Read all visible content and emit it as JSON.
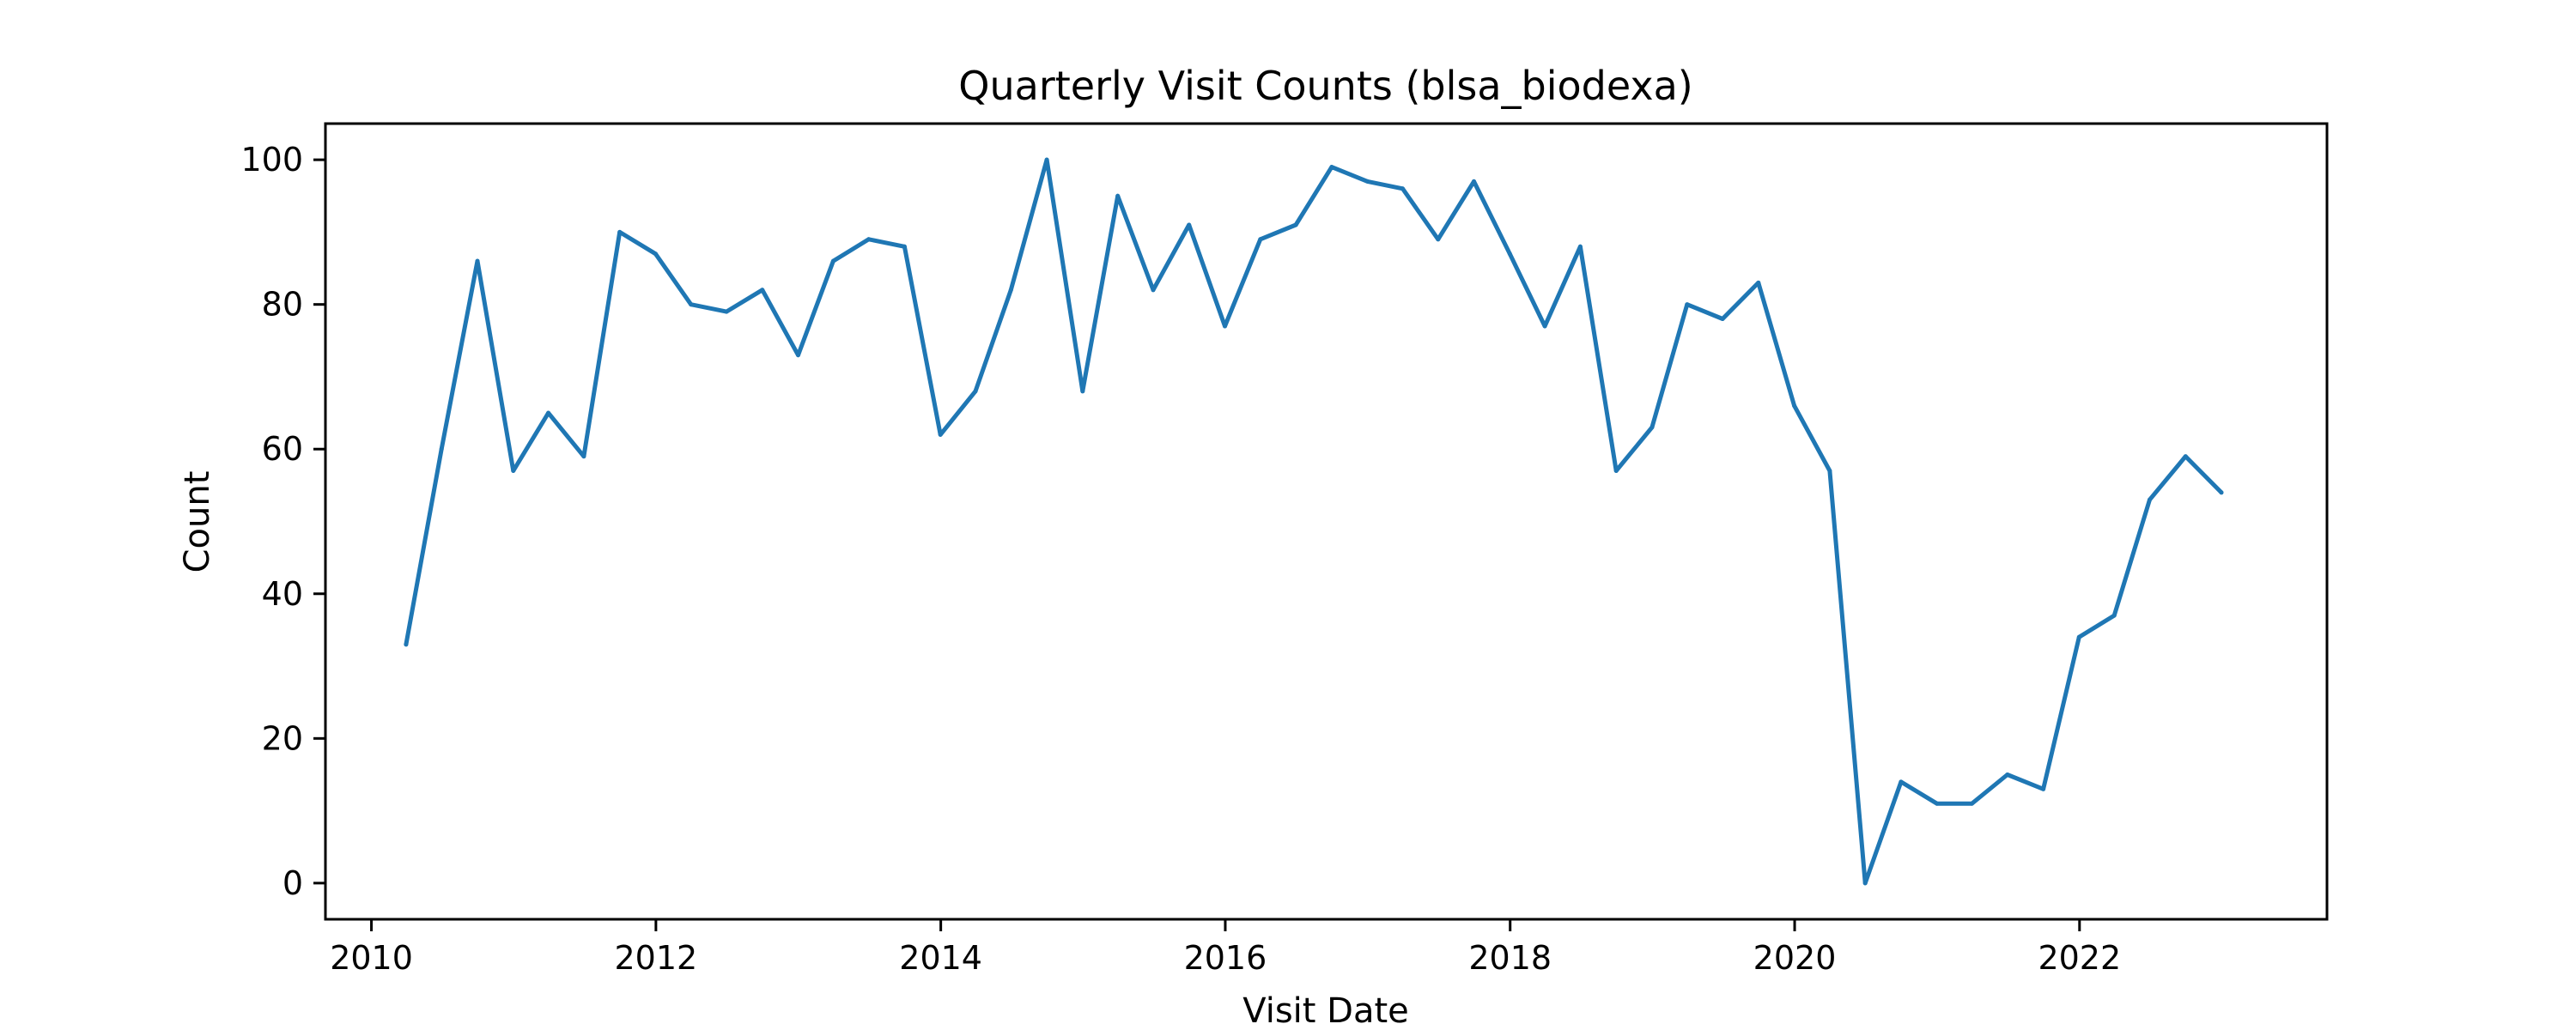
{
  "chart_data": {
    "type": "line",
    "title": "Quarterly Visit Counts (blsa_biodexa)",
    "xlabel": "Visit Date",
    "ylabel": "Count",
    "xlim": [
      "2009-09-05",
      "2023-09-28"
    ],
    "ylim": [
      -5,
      105
    ],
    "x_ticks": [
      {
        "value": "2010-01-01",
        "label": "2010"
      },
      {
        "value": "2012-01-01",
        "label": "2012"
      },
      {
        "value": "2014-01-01",
        "label": "2014"
      },
      {
        "value": "2016-01-01",
        "label": "2016"
      },
      {
        "value": "2018-01-01",
        "label": "2018"
      },
      {
        "value": "2020-01-01",
        "label": "2020"
      },
      {
        "value": "2022-01-01",
        "label": "2022"
      }
    ],
    "y_ticks": [
      {
        "value": 0,
        "label": "0"
      },
      {
        "value": 20,
        "label": "20"
      },
      {
        "value": 40,
        "label": "40"
      },
      {
        "value": 60,
        "label": "60"
      },
      {
        "value": 80,
        "label": "80"
      },
      {
        "value": 100,
        "label": "100"
      }
    ],
    "grid": false,
    "colors": {
      "line": "#1f77b4",
      "axes": "#000000",
      "background": "#ffffff"
    },
    "series": [
      {
        "x": [
          "2010-03-31",
          "2010-06-30",
          "2010-09-30",
          "2010-12-31",
          "2011-03-31",
          "2011-06-30",
          "2011-09-30",
          "2011-12-31",
          "2012-03-31",
          "2012-06-30",
          "2012-09-30",
          "2012-12-31",
          "2013-03-31",
          "2013-06-30",
          "2013-09-30",
          "2013-12-31",
          "2014-03-31",
          "2014-06-30",
          "2014-09-30",
          "2014-12-31",
          "2015-03-31",
          "2015-06-30",
          "2015-09-30",
          "2015-12-31",
          "2016-03-31",
          "2016-06-30",
          "2016-09-30",
          "2016-12-31",
          "2017-03-31",
          "2017-06-30",
          "2017-09-30",
          "2017-12-31",
          "2018-03-31",
          "2018-06-30",
          "2018-09-30",
          "2018-12-31",
          "2019-03-31",
          "2019-06-30",
          "2019-09-30",
          "2019-12-31",
          "2020-03-31",
          "2020-06-30",
          "2020-09-30",
          "2020-12-31",
          "2021-03-31",
          "2021-06-30",
          "2021-09-30",
          "2021-12-31",
          "2022-03-31",
          "2022-06-30",
          "2022-09-30",
          "2022-12-31"
        ],
        "values": [
          33,
          60,
          86,
          57,
          65,
          59,
          90,
          87,
          80,
          79,
          82,
          73,
          86,
          89,
          88,
          62,
          68,
          82,
          100,
          68,
          95,
          82,
          91,
          77,
          89,
          91,
          99,
          97,
          96,
          89,
          97,
          87,
          77,
          88,
          57,
          63,
          80,
          78,
          83,
          66,
          57,
          0,
          14,
          11,
          11,
          15,
          13,
          34,
          37,
          53,
          59,
          54
        ]
      }
    ]
  }
}
